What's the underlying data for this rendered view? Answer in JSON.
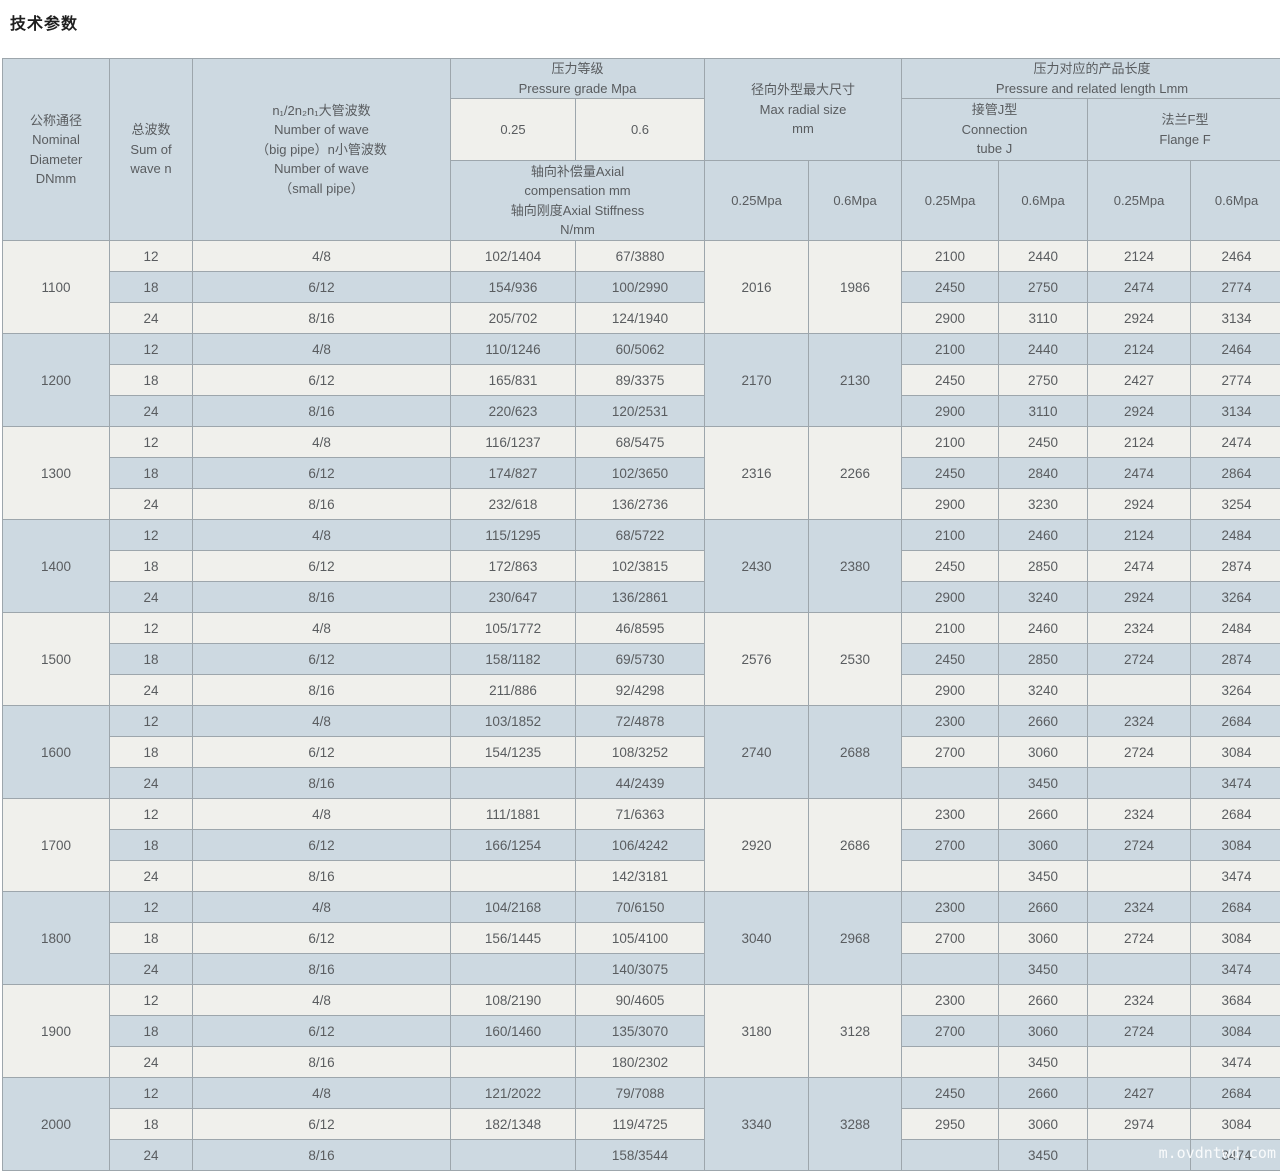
{
  "page": {
    "title": "技术参数",
    "watermark": "m.ovdntwd.com"
  },
  "colors": {
    "row_light": "#f0f0ec",
    "row_blue": "#cdd9e1",
    "header_blue": "#cdd9e1",
    "border": "#9da6ac",
    "text": "#595c5f"
  },
  "header": {
    "nominal_diameter": "公称通径\nNominal\nDiameter\nDNmm",
    "sum_of_wave": "总波数\nSum of\nwave n",
    "number_of_wave": "n₁/2n₂n₁大管波数\nNumber of wave\n（big pipe）n小管波数\nNumber of wave\n（small pipe）",
    "pressure_grade": "压力等级\nPressure grade Mpa",
    "pressure_025": "0.25",
    "pressure_06": "0.6",
    "axial": "轴向补偿量Axial\ncompensation mm\n轴向刚度Axial Stiffness\nN/mm",
    "max_radial": "径向外型最大尺寸\nMax radial size\nmm",
    "length_title": "压力对应的产品长度\nPressure and related length Lmm",
    "tube_j": "接管J型\nConnection\ntube J",
    "flange_f": "法兰F型\nFlange F",
    "mpa_025": "0.25Mpa",
    "mpa_06": "0.6Mpa"
  },
  "table": {
    "groups": [
      {
        "dn": "1100",
        "radial_025": "2016",
        "radial_06": "1986",
        "rows": [
          {
            "waves": "12",
            "n_waves": "4/8",
            "comp_025": "102/1404",
            "comp_06": "67/3880",
            "tube_025": "2100",
            "tube_06": "2440",
            "flange_025": "2124",
            "flange_06": "2464"
          },
          {
            "waves": "18",
            "n_waves": "6/12",
            "comp_025": "154/936",
            "comp_06": "100/2990",
            "tube_025": "2450",
            "tube_06": "2750",
            "flange_025": "2474",
            "flange_06": "2774"
          },
          {
            "waves": "24",
            "n_waves": "8/16",
            "comp_025": "205/702",
            "comp_06": "124/1940",
            "tube_025": "2900",
            "tube_06": "3110",
            "flange_025": "2924",
            "flange_06": "3134"
          }
        ]
      },
      {
        "dn": "1200",
        "radial_025": "2170",
        "radial_06": "2130",
        "rows": [
          {
            "waves": "12",
            "n_waves": "4/8",
            "comp_025": "110/1246",
            "comp_06": "60/5062",
            "tube_025": "2100",
            "tube_06": "2440",
            "flange_025": "2124",
            "flange_06": "2464"
          },
          {
            "waves": "18",
            "n_waves": "6/12",
            "comp_025": "165/831",
            "comp_06": "89/3375",
            "tube_025": "2450",
            "tube_06": "2750",
            "flange_025": "2427",
            "flange_06": "2774"
          },
          {
            "waves": "24",
            "n_waves": "8/16",
            "comp_025": "220/623",
            "comp_06": "120/2531",
            "tube_025": "2900",
            "tube_06": "3110",
            "flange_025": "2924",
            "flange_06": "3134"
          }
        ]
      },
      {
        "dn": "1300",
        "radial_025": "2316",
        "radial_06": "2266",
        "rows": [
          {
            "waves": "12",
            "n_waves": "4/8",
            "comp_025": "116/1237",
            "comp_06": "68/5475",
            "tube_025": "2100",
            "tube_06": "2450",
            "flange_025": "2124",
            "flange_06": "2474"
          },
          {
            "waves": "18",
            "n_waves": "6/12",
            "comp_025": "174/827",
            "comp_06": "102/3650",
            "tube_025": "2450",
            "tube_06": "2840",
            "flange_025": "2474",
            "flange_06": "2864"
          },
          {
            "waves": "24",
            "n_waves": "8/16",
            "comp_025": "232/618",
            "comp_06": "136/2736",
            "tube_025": "2900",
            "tube_06": "3230",
            "flange_025": "2924",
            "flange_06": "3254"
          }
        ]
      },
      {
        "dn": "1400",
        "radial_025": "2430",
        "radial_06": "2380",
        "rows": [
          {
            "waves": "12",
            "n_waves": "4/8",
            "comp_025": "115/1295",
            "comp_06": "68/5722",
            "tube_025": "2100",
            "tube_06": "2460",
            "flange_025": "2124",
            "flange_06": "2484"
          },
          {
            "waves": "18",
            "n_waves": "6/12",
            "comp_025": "172/863",
            "comp_06": "102/3815",
            "tube_025": "2450",
            "tube_06": "2850",
            "flange_025": "2474",
            "flange_06": "2874"
          },
          {
            "waves": "24",
            "n_waves": "8/16",
            "comp_025": "230/647",
            "comp_06": "136/2861",
            "tube_025": "2900",
            "tube_06": "3240",
            "flange_025": "2924",
            "flange_06": "3264"
          }
        ]
      },
      {
        "dn": "1500",
        "radial_025": "2576",
        "radial_06": "2530",
        "rows": [
          {
            "waves": "12",
            "n_waves": "4/8",
            "comp_025": "105/1772",
            "comp_06": "46/8595",
            "tube_025": "2100",
            "tube_06": "2460",
            "flange_025": "2324",
            "flange_06": "2484"
          },
          {
            "waves": "18",
            "n_waves": "6/12",
            "comp_025": "158/1182",
            "comp_06": "69/5730",
            "tube_025": "2450",
            "tube_06": "2850",
            "flange_025": "2724",
            "flange_06": "2874"
          },
          {
            "waves": "24",
            "n_waves": "8/16",
            "comp_025": "211/886",
            "comp_06": "92/4298",
            "tube_025": "2900",
            "tube_06": "3240",
            "flange_025": "",
            "flange_06": "3264"
          }
        ]
      },
      {
        "dn": "1600",
        "radial_025": "2740",
        "radial_06": "2688",
        "rows": [
          {
            "waves": "12",
            "n_waves": "4/8",
            "comp_025": "103/1852",
            "comp_06": "72/4878",
            "tube_025": "2300",
            "tube_06": "2660",
            "flange_025": "2324",
            "flange_06": "2684"
          },
          {
            "waves": "18",
            "n_waves": "6/12",
            "comp_025": "154/1235",
            "comp_06": "108/3252",
            "tube_025": "2700",
            "tube_06": "3060",
            "flange_025": "2724",
            "flange_06": "3084"
          },
          {
            "waves": "24",
            "n_waves": "8/16",
            "comp_025": "",
            "comp_06": "44/2439",
            "tube_025": "",
            "tube_06": "3450",
            "flange_025": "",
            "flange_06": "3474"
          }
        ]
      },
      {
        "dn": "1700",
        "radial_025": "2920",
        "radial_06": "2686",
        "rows": [
          {
            "waves": "12",
            "n_waves": "4/8",
            "comp_025": "111/1881",
            "comp_06": "71/6363",
            "tube_025": "2300",
            "tube_06": "2660",
            "flange_025": "2324",
            "flange_06": "2684"
          },
          {
            "waves": "18",
            "n_waves": "6/12",
            "comp_025": "166/1254",
            "comp_06": "106/4242",
            "tube_025": "2700",
            "tube_06": "3060",
            "flange_025": "2724",
            "flange_06": "3084"
          },
          {
            "waves": "24",
            "n_waves": "8/16",
            "comp_025": "",
            "comp_06": "142/3181",
            "tube_025": "",
            "tube_06": "3450",
            "flange_025": "",
            "flange_06": "3474"
          }
        ]
      },
      {
        "dn": "1800",
        "radial_025": "3040",
        "radial_06": "2968",
        "rows": [
          {
            "waves": "12",
            "n_waves": "4/8",
            "comp_025": "104/2168",
            "comp_06": "70/6150",
            "tube_025": "2300",
            "tube_06": "2660",
            "flange_025": "2324",
            "flange_06": "2684"
          },
          {
            "waves": "18",
            "n_waves": "6/12",
            "comp_025": "156/1445",
            "comp_06": "105/4100",
            "tube_025": "2700",
            "tube_06": "3060",
            "flange_025": "2724",
            "flange_06": "3084"
          },
          {
            "waves": "24",
            "n_waves": "8/16",
            "comp_025": "",
            "comp_06": "140/3075",
            "tube_025": "",
            "tube_06": "3450",
            "flange_025": "",
            "flange_06": "3474"
          }
        ]
      },
      {
        "dn": "1900",
        "radial_025": "3180",
        "radial_06": "3128",
        "rows": [
          {
            "waves": "12",
            "n_waves": "4/8",
            "comp_025": "108/2190",
            "comp_06": "90/4605",
            "tube_025": "2300",
            "tube_06": "2660",
            "flange_025": "2324",
            "flange_06": "3684"
          },
          {
            "waves": "18",
            "n_waves": "6/12",
            "comp_025": "160/1460",
            "comp_06": "135/3070",
            "tube_025": "2700",
            "tube_06": "3060",
            "flange_025": "2724",
            "flange_06": "3084"
          },
          {
            "waves": "24",
            "n_waves": "8/16",
            "comp_025": "",
            "comp_06": "180/2302",
            "tube_025": "",
            "tube_06": "3450",
            "flange_025": "",
            "flange_06": "3474"
          }
        ]
      },
      {
        "dn": "2000",
        "radial_025": "3340",
        "radial_06": "3288",
        "rows": [
          {
            "waves": "12",
            "n_waves": "4/8",
            "comp_025": "121/2022",
            "comp_06": "79/7088",
            "tube_025": "2450",
            "tube_06": "2660",
            "flange_025": "2427",
            "flange_06": "2684"
          },
          {
            "waves": "18",
            "n_waves": "6/12",
            "comp_025": "182/1348",
            "comp_06": "119/4725",
            "tube_025": "2950",
            "tube_06": "3060",
            "flange_025": "2974",
            "flange_06": "3084"
          },
          {
            "waves": "24",
            "n_waves": "8/16",
            "comp_025": "",
            "comp_06": "158/3544",
            "tube_025": "",
            "tube_06": "3450",
            "flange_025": "",
            "flange_06": "3474"
          }
        ]
      }
    ]
  }
}
